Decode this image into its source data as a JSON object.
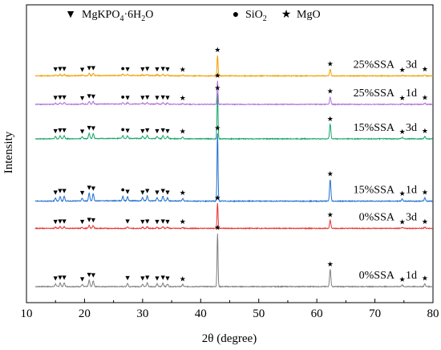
{
  "chart_data": {
    "type": "line",
    "xlabel": "2θ (degree)",
    "ylabel": "Intensity",
    "xlim": [
      10,
      80
    ],
    "xticks": [
      10,
      20,
      30,
      40,
      50,
      60,
      70,
      80
    ],
    "yticks": false,
    "grid": false,
    "legend": {
      "placement": "top",
      "entries": [
        {
          "symbol": "▼",
          "label": "MgKPO4·6H2O",
          "label_main": "MgKPO",
          "sub1": "4",
          "mid": "·6H",
          "sub2": "2",
          "tail": "O"
        },
        {
          "symbol": "●",
          "label": "SiO2",
          "label_main": "SiO",
          "sub1": "2"
        },
        {
          "symbol": "★",
          "label": "MgO",
          "label_main": "MgO"
        }
      ]
    },
    "phase_peaks": {
      "MgKPO4·6H2O": [
        15.0,
        15.8,
        16.5,
        19.6,
        20.8,
        21.5,
        27.4,
        30.0,
        30.8,
        32.5,
        33.5,
        34.3
      ],
      "SiO2": [
        26.6
      ],
      "MgO": [
        36.9,
        42.9,
        62.3,
        74.7,
        78.6
      ]
    },
    "peak_profile": [
      {
        "x": 15.0,
        "h": 0.05
      },
      {
        "x": 15.8,
        "h": 0.07
      },
      {
        "x": 16.5,
        "h": 0.07
      },
      {
        "x": 19.6,
        "h": 0.04
      },
      {
        "x": 20.8,
        "h": 0.12
      },
      {
        "x": 21.5,
        "h": 0.11
      },
      {
        "x": 27.4,
        "h": 0.06
      },
      {
        "x": 30.0,
        "h": 0.05
      },
      {
        "x": 30.8,
        "h": 0.07
      },
      {
        "x": 32.5,
        "h": 0.05
      },
      {
        "x": 33.5,
        "h": 0.07
      },
      {
        "x": 34.3,
        "h": 0.05
      },
      {
        "x": 36.9,
        "h": 0.04
      },
      {
        "x": 42.9,
        "h": 1.0
      },
      {
        "x": 62.3,
        "h": 0.32
      },
      {
        "x": 74.7,
        "h": 0.03
      },
      {
        "x": 78.6,
        "h": 0.05
      }
    ],
    "series": [
      {
        "name": "0%SSA 1d",
        "label_main": "0%SSA",
        "label_age": "1d",
        "color": "#7f7f7f",
        "baseline": 0.0,
        "height": 1.7,
        "silica": false
      },
      {
        "name": "0%SSA 3d",
        "label_main": "0%SSA",
        "label_age": "3d",
        "color": "#e8312f",
        "baseline": 1.86,
        "height": 0.8,
        "silica": false
      },
      {
        "name": "15%SSA 1d",
        "label_main": "15%SSA",
        "label_age": "1d",
        "color": "#1f6fd1",
        "baseline": 2.73,
        "height": 2.15,
        "silica": true
      },
      {
        "name": "15%SSA 3d",
        "label_main": "15%SSA",
        "label_age": "3d",
        "color": "#17a668",
        "baseline": 4.72,
        "height": 1.45,
        "silica": true
      },
      {
        "name": "25%SSA 1d",
        "label_main": "25%SSA",
        "label_age": "1d",
        "color": "#b070d8",
        "baseline": 5.82,
        "height": 0.75,
        "silica": true
      },
      {
        "name": "25%SSA 3d",
        "label_main": "25%SSA",
        "label_age": "3d",
        "color": "#f0a000",
        "baseline": 6.73,
        "height": 0.66,
        "silica": true
      }
    ]
  }
}
